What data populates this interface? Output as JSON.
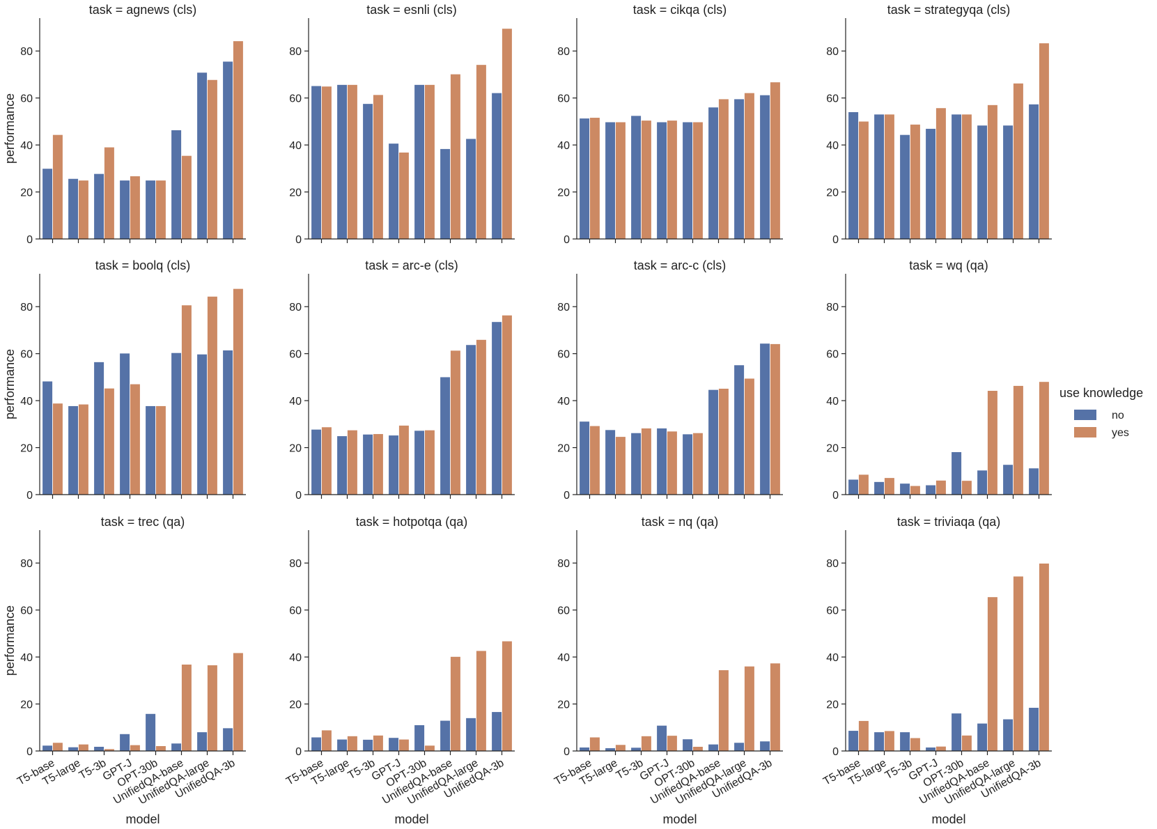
{
  "legend": {
    "title": "use knowledge",
    "entries": [
      {
        "label": "no",
        "color": "#5572a7"
      },
      {
        "label": "yes",
        "color": "#cc8963"
      }
    ]
  },
  "chart_data": {
    "type": "bar",
    "title_prefix": "task = ",
    "xlabel": "model",
    "ylabel": "performance",
    "ylim": [
      0,
      94
    ],
    "yticks": [
      0,
      20,
      40,
      60,
      80
    ],
    "categories": [
      "T5-base",
      "T5-large",
      "T5-3b",
      "GPT-J",
      "OPT-30b",
      "UnifiedQA-base",
      "UnifiedQA-large",
      "UnifiedQA-3b"
    ],
    "panels": [
      {
        "task": "agnews (cls)",
        "series": [
          {
            "name": "no",
            "values": [
              30.0,
              25.7,
              27.8,
              25.0,
              25.0,
              46.4,
              70.9,
              75.6
            ]
          },
          {
            "name": "yes",
            "values": [
              44.4,
              25.0,
              39.1,
              26.8,
              25.0,
              35.5,
              67.8,
              84.3
            ]
          }
        ]
      },
      {
        "task": "esnli (cls)",
        "series": [
          {
            "name": "no",
            "values": [
              65.2,
              65.7,
              57.6,
              40.7,
              65.7,
              38.4,
              42.7,
              62.2
            ]
          },
          {
            "name": "yes",
            "values": [
              65.0,
              65.7,
              61.4,
              36.9,
              65.7,
              70.2,
              74.2,
              89.6
            ]
          }
        ]
      },
      {
        "task": "cikqa (cls)",
        "series": [
          {
            "name": "no",
            "values": [
              51.4,
              49.8,
              52.5,
              49.8,
              49.8,
              56.1,
              59.6,
              61.3
            ]
          },
          {
            "name": "yes",
            "values": [
              51.7,
              49.8,
              50.5,
              50.5,
              49.8,
              59.6,
              62.2,
              66.8
            ]
          }
        ]
      },
      {
        "task": "strategyqa (cls)",
        "series": [
          {
            "name": "no",
            "values": [
              54.1,
              53.1,
              44.4,
              47.0,
              53.1,
              48.4,
              48.4,
              57.4
            ]
          },
          {
            "name": "yes",
            "values": [
              50.1,
              53.1,
              48.8,
              55.8,
              53.1,
              57.1,
              66.3,
              83.4
            ]
          }
        ]
      },
      {
        "task": "boolq (cls)",
        "series": [
          {
            "name": "no",
            "values": [
              48.3,
              37.8,
              56.5,
              60.2,
              37.8,
              60.4,
              59.8,
              61.5
            ]
          },
          {
            "name": "yes",
            "values": [
              38.9,
              38.5,
              45.3,
              47.1,
              37.8,
              80.7,
              84.4,
              87.7
            ]
          }
        ]
      },
      {
        "task": "arc-e (cls)",
        "series": [
          {
            "name": "no",
            "values": [
              27.8,
              25.0,
              25.7,
              25.3,
              27.3,
              50.1,
              63.8,
              73.6
            ]
          },
          {
            "name": "yes",
            "values": [
              28.8,
              27.5,
              25.9,
              29.5,
              27.5,
              61.4,
              66.0,
              76.4
            ]
          }
        ]
      },
      {
        "task": "arc-c (cls)",
        "series": [
          {
            "name": "no",
            "values": [
              31.2,
              27.6,
              26.3,
              28.3,
              25.8,
              44.7,
              55.2,
              64.4
            ]
          },
          {
            "name": "yes",
            "values": [
              29.3,
              24.7,
              28.3,
              27.0,
              26.3,
              45.2,
              49.5,
              64.2
            ]
          }
        ]
      },
      {
        "task": "wq (qa)",
        "series": [
          {
            "name": "no",
            "values": [
              6.5,
              5.5,
              4.8,
              4.1,
              18.2,
              10.4,
              12.8,
              11.3
            ]
          },
          {
            "name": "yes",
            "values": [
              8.6,
              7.2,
              3.8,
              6.1,
              6.0,
              44.3,
              46.4,
              48.1
            ]
          }
        ]
      },
      {
        "task": "trec (qa)",
        "series": [
          {
            "name": "no",
            "values": [
              2.4,
              1.7,
              1.9,
              7.3,
              15.9,
              3.3,
              8.1,
              9.8
            ]
          },
          {
            "name": "yes",
            "values": [
              3.6,
              2.9,
              0.9,
              2.6,
              2.2,
              36.9,
              36.6,
              41.8
            ]
          }
        ]
      },
      {
        "task": "hotpotqa (qa)",
        "series": [
          {
            "name": "no",
            "values": [
              5.9,
              5.0,
              4.9,
              5.7,
              11.1,
              13.0,
              14.1,
              16.7
            ]
          },
          {
            "name": "yes",
            "values": [
              8.9,
              6.4,
              6.7,
              5.0,
              2.4,
              40.2,
              42.7,
              46.8
            ]
          }
        ]
      },
      {
        "task": "nq (qa)",
        "series": [
          {
            "name": "no",
            "values": [
              1.6,
              1.3,
              1.5,
              10.9,
              5.1,
              2.9,
              3.6,
              4.2
            ]
          },
          {
            "name": "yes",
            "values": [
              5.9,
              2.7,
              6.4,
              6.6,
              1.9,
              34.5,
              36.1,
              37.4
            ]
          }
        ]
      },
      {
        "task": "triviaqa (qa)",
        "series": [
          {
            "name": "no",
            "values": [
              8.7,
              8.1,
              8.1,
              1.6,
              16.1,
              11.8,
              13.6,
              18.5
            ]
          },
          {
            "name": "yes",
            "values": [
              12.9,
              8.6,
              5.6,
              2.0,
              6.7,
              65.6,
              74.4,
              79.9
            ]
          }
        ]
      }
    ]
  }
}
